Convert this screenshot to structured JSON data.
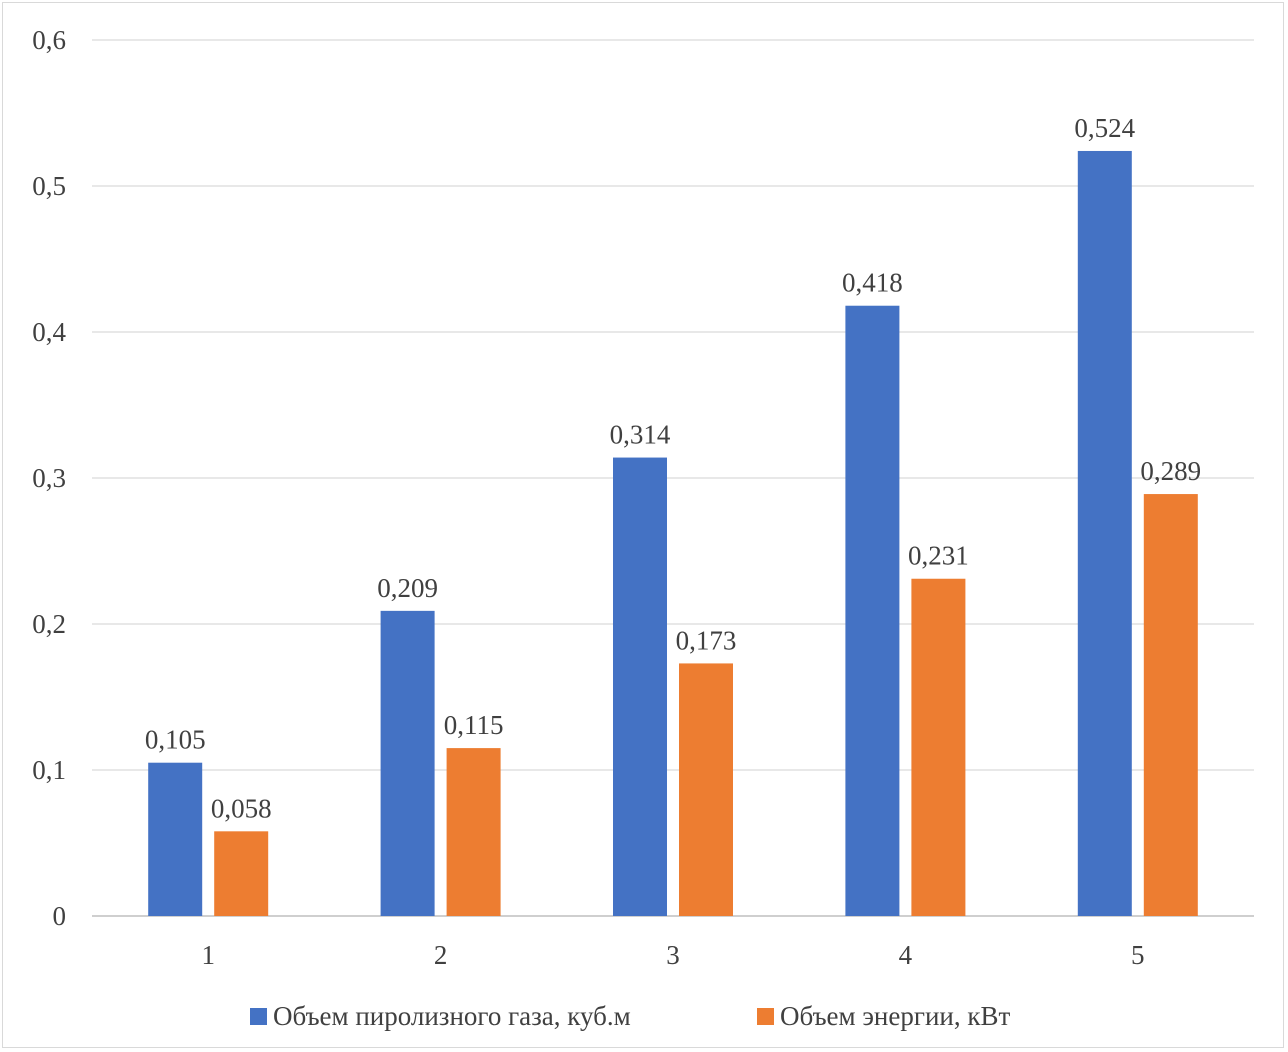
{
  "chart_data": {
    "type": "bar",
    "categories": [
      "1",
      "2",
      "3",
      "4",
      "5"
    ],
    "series": [
      {
        "name": "Объем пиролизного газа, куб.м",
        "color": "#4472c4",
        "values": [
          0.105,
          0.209,
          0.314,
          0.418,
          0.524
        ],
        "labels": [
          "0,105",
          "0,209",
          "0,314",
          "0,418",
          "0,524"
        ]
      },
      {
        "name": "Объем энергии, кВт",
        "color": "#ed7d31",
        "values": [
          0.058,
          0.115,
          0.173,
          0.231,
          0.289
        ],
        "labels": [
          "0,058",
          "0,115",
          "0,173",
          "0,231",
          "0,289"
        ]
      }
    ],
    "yticks": [
      0,
      0.1,
      0.2,
      0.3,
      0.4,
      0.5,
      0.6
    ],
    "ytick_labels": [
      "0",
      "0,1",
      "0,2",
      "0,3",
      "0,4",
      "0,5",
      "0,6"
    ],
    "ylim": [
      0,
      0.6
    ],
    "grid": true,
    "legend": "bottom"
  }
}
